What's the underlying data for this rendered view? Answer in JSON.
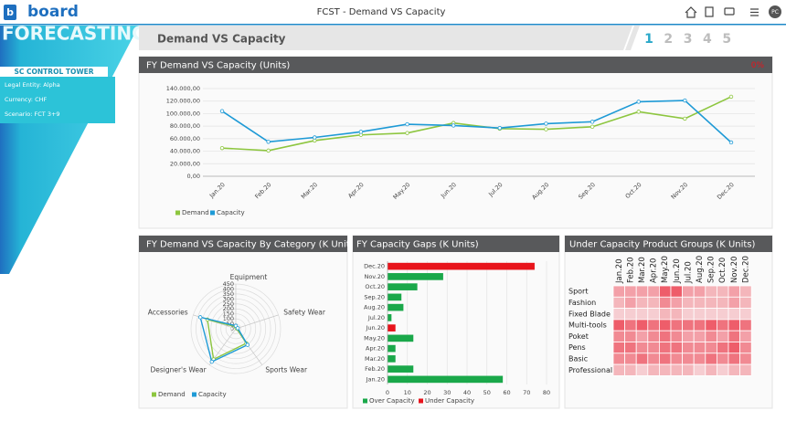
{
  "topbar": {
    "logo_mark": "b",
    "logo": "board",
    "title": "FCST - Demand VS Capacity",
    "user": "PC"
  },
  "sidebar": {
    "app": "FORECASTING",
    "section": "SC CONTROL TOWER",
    "items": [
      "Legal Entity: Alpha",
      "Currency:  CHF",
      "Scenario: FCT 3+9"
    ]
  },
  "header": {
    "title": "Demand VS Capacity",
    "steps": [
      "1",
      "2",
      "3",
      "4",
      "5"
    ],
    "active_step": 0
  },
  "line_chart": {
    "type": "line",
    "title": "FY Demand VS Capacity (Units)",
    "badge": "0%",
    "categories": [
      "Jan.20",
      "Feb.20",
      "Mar.20",
      "Apr.20",
      "May.20",
      "Jun.20",
      "Jul.20",
      "Aug.20",
      "Sep.20",
      "Oct.20",
      "Nov.20",
      "Dec.20"
    ],
    "series": [
      {
        "name": "Demand",
        "color": "#8dc63f",
        "values": [
          45000,
          41000,
          57000,
          66000,
          69000,
          85000,
          76000,
          75000,
          79000,
          103000,
          92000,
          127000
        ]
      },
      {
        "name": "Capacity",
        "color": "#1e9ad6",
        "values": [
          104000,
          55000,
          62000,
          71000,
          83000,
          81000,
          77000,
          84000,
          87000,
          119000,
          121000,
          54000
        ]
      }
    ],
    "ylim": [
      0,
      140000
    ],
    "yticks": [
      {
        "value": 0,
        "label": "0,00"
      },
      {
        "value": 20000,
        "label": "20.000,00"
      },
      {
        "value": 40000,
        "label": "40.000,00"
      },
      {
        "value": 60000,
        "label": "60.000,00"
      },
      {
        "value": 80000,
        "label": "80.000,00"
      },
      {
        "value": 100000,
        "label": "100.000,00"
      },
      {
        "value": 120000,
        "label": "120.000,00"
      },
      {
        "value": 140000,
        "label": "140.000,00"
      }
    ],
    "grid": true
  },
  "radar_chart": {
    "type": "radar",
    "title": "FY Demand VS Capacity By Category (K Units)",
    "categories": [
      "Equipment",
      "Safety Wear",
      "Sports Wear",
      "Designer's Wear",
      "Accessories"
    ],
    "series": [
      {
        "name": "Demand",
        "color": "#8dc63f",
        "values": [
          20,
          10,
          180,
          380,
          300
        ]
      },
      {
        "name": "Capacity",
        "color": "#1e9ad6",
        "values": [
          30,
          20,
          200,
          410,
          375
        ]
      }
    ],
    "rlim": [
      0,
      450
    ],
    "rticks": [
      0,
      50,
      100,
      150,
      200,
      250,
      300,
      350,
      400,
      450
    ]
  },
  "bar_chart": {
    "type": "hbar",
    "title": "FY Capacity Gaps (K Units)",
    "categories": [
      "Dec.20",
      "Nov.20",
      "Oct.20",
      "Sep.20",
      "Aug.20",
      "Jul.20",
      "Jun.20",
      "May.20",
      "Apr.20",
      "Mar.20",
      "Feb.20",
      "Jan.20"
    ],
    "series": [
      {
        "name": "Over Capacity",
        "color": "#1aa84a",
        "values": [
          null,
          28,
          15,
          7,
          8,
          2,
          null,
          13,
          4,
          4,
          13,
          58
        ]
      },
      {
        "name": "Under Capacity",
        "color": "#e8141c",
        "values": [
          74,
          null,
          null,
          null,
          null,
          null,
          4,
          null,
          null,
          null,
          null,
          null
        ]
      }
    ],
    "xlim": [
      0,
      80
    ],
    "xticks": [
      0,
      10,
      20,
      30,
      40,
      50,
      60,
      70,
      80
    ],
    "grid": true
  },
  "heatmap": {
    "type": "heatmap",
    "title": "Under Capacity Product Groups (K Units)",
    "color": "#e8192c",
    "vlim": [
      0,
      10
    ],
    "columns": [
      "Jan.20",
      "Feb.20",
      "Mar.20",
      "Apr.20",
      "May.20",
      "Jun.20",
      "Jul.20",
      "Aug.20",
      "Sep.20",
      "Oct.20",
      "Nov.20",
      "Dec.20"
    ],
    "rows": [
      "Sport",
      "Fashion",
      "Fixed Blade",
      "Multi-tools",
      "Poket",
      "Pens",
      "Basic",
      "Professional"
    ],
    "values": [
      [
        4,
        4,
        4,
        4,
        7,
        7,
        4,
        4,
        3,
        3,
        4,
        3
      ],
      [
        3,
        4,
        3,
        3,
        5,
        4,
        3,
        3,
        3,
        3,
        4,
        3
      ],
      [
        2,
        2,
        2,
        2,
        3,
        3,
        2,
        2,
        2,
        2,
        2,
        2
      ],
      [
        7,
        6,
        7,
        6,
        7,
        6,
        6,
        6,
        7,
        6,
        7,
        6
      ],
      [
        5,
        5,
        4,
        5,
        6,
        5,
        4,
        4,
        5,
        4,
        6,
        4
      ],
      [
        6,
        6,
        5,
        5,
        6,
        6,
        5,
        5,
        5,
        6,
        7,
        5
      ],
      [
        5,
        5,
        6,
        5,
        6,
        5,
        5,
        5,
        6,
        5,
        6,
        5
      ],
      [
        3,
        3,
        2,
        3,
        3,
        3,
        3,
        2,
        3,
        2,
        3,
        3
      ]
    ]
  }
}
